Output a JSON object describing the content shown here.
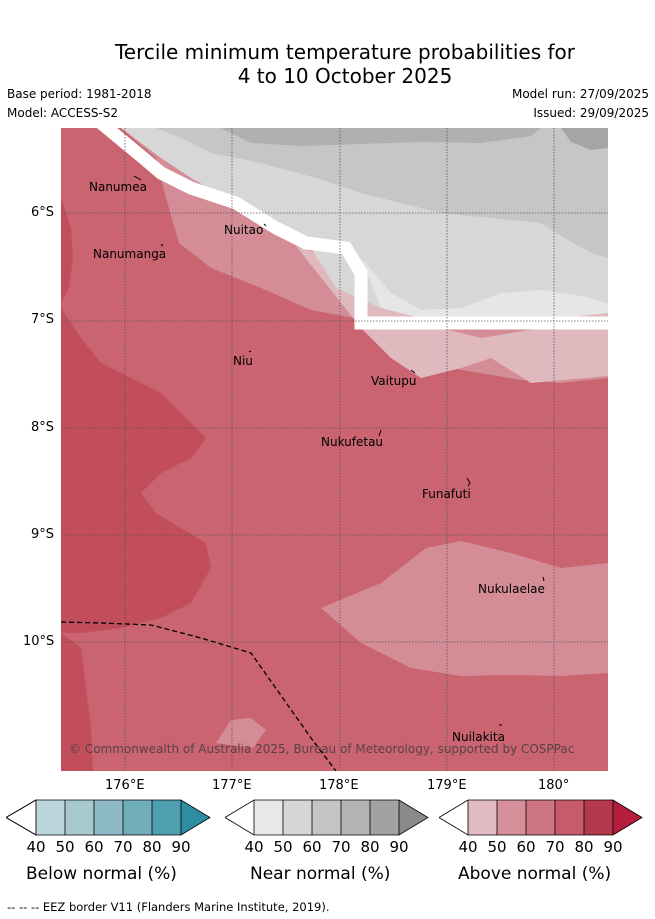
{
  "title": {
    "line1": "Tercile minimum temperature probabilities for",
    "line2": "4 to 10 October 2025"
  },
  "meta": {
    "base_period": "Base period: 1981-2018",
    "model": "Model: ACCESS-S2",
    "model_run": "Model run: 27/09/2025",
    "issued": "Issued: 29/09/2025"
  },
  "map": {
    "lat_labels": [
      "6°S",
      "7°S",
      "8°S",
      "9°S",
      "10°S"
    ],
    "lon_labels": [
      "176°E",
      "177°E",
      "178°E",
      "179°E",
      "180°"
    ],
    "places": [
      {
        "name": "Nanumea"
      },
      {
        "name": "Nanumanga"
      },
      {
        "name": "Nuitao"
      },
      {
        "name": "Niu"
      },
      {
        "name": "Vaitupu"
      },
      {
        "name": "Nukufetau"
      },
      {
        "name": "Funafuti"
      },
      {
        "name": "Nukulaelae"
      },
      {
        "name": "Nuilakita"
      }
    ],
    "copyright": "© Commonwealth of Australia 2025, Bureau of Meteorology, supported by COSPPac"
  },
  "legends": [
    {
      "caption": "Below normal (%)",
      "ticks": [
        "40",
        "50",
        "60",
        "70",
        "80",
        "90"
      ],
      "colors": [
        "#bdd6dc",
        "#a6c9cf",
        "#8dbac4",
        "#70adbb",
        "#4ea0b0",
        "#2e8ca3"
      ]
    },
    {
      "caption": "Near normal (%)",
      "ticks": [
        "40",
        "50",
        "60",
        "70",
        "80",
        "90"
      ],
      "colors": [
        "#e8e8e8",
        "#d6d6d6",
        "#c5c5c5",
        "#b4b4b4",
        "#a2a2a2",
        "#8a8a8a"
      ]
    },
    {
      "caption": "Above normal (%)",
      "ticks": [
        "40",
        "50",
        "60",
        "70",
        "80",
        "90"
      ],
      "colors": [
        "#e2bcc2",
        "#d79099",
        "#cd7580",
        "#c65b69",
        "#b5384c",
        "#b51d3d"
      ]
    }
  ],
  "footer": {
    "eez_label": "-- EEZ border V11 (Flanders Marine Institute, 2019)."
  }
}
